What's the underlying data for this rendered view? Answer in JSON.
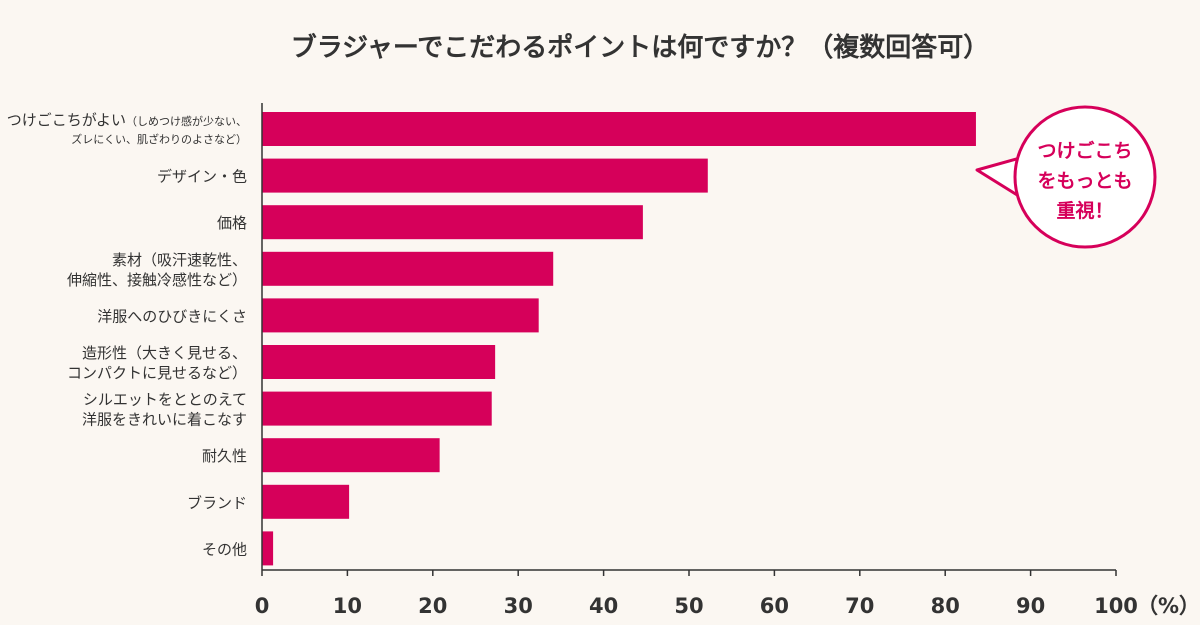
{
  "chart_data": {
    "type": "bar",
    "orientation": "horizontal",
    "title": "ブラジャーでこだわるポイントは何ですか？（複数回答可）",
    "unit": "（%）",
    "categories": [
      {
        "lines": [
          "つけごこちがよい",
          "ズレにくい、肌ざわりのよさなど）"
        ],
        "sub": "（しめつけ感が少ない、"
      },
      {
        "lines": [
          "デザイン・色"
        ]
      },
      {
        "lines": [
          "価格"
        ]
      },
      {
        "lines": [
          "素材（吸汗速乾性、",
          "伸縮性、接触冷感性など）"
        ]
      },
      {
        "lines": [
          "洋服へのひびきにくさ"
        ]
      },
      {
        "lines": [
          "造形性（大きく見せる、",
          "コンパクトに見せるなど）"
        ]
      },
      {
        "lines": [
          "シルエットをととのえて",
          "洋服をきれいに着こなす"
        ]
      },
      {
        "lines": [
          "耐久性"
        ]
      },
      {
        "lines": [
          "ブランド"
        ]
      },
      {
        "lines": [
          "その他"
        ]
      }
    ],
    "values": [
      83.6,
      52.2,
      44.6,
      34.1,
      32.4,
      27.3,
      26.9,
      20.8,
      10.2,
      1.3
    ],
    "xlim": [
      0,
      100
    ],
    "xticks": [
      0,
      10,
      20,
      30,
      40,
      50,
      60,
      70,
      80,
      90,
      100
    ],
    "bar_color": "#d6005a",
    "grid": false,
    "annotation": {
      "lines": [
        "つけごこち",
        "をもっと も",
        "重視！"
      ],
      "color": "#d6005a"
    }
  }
}
